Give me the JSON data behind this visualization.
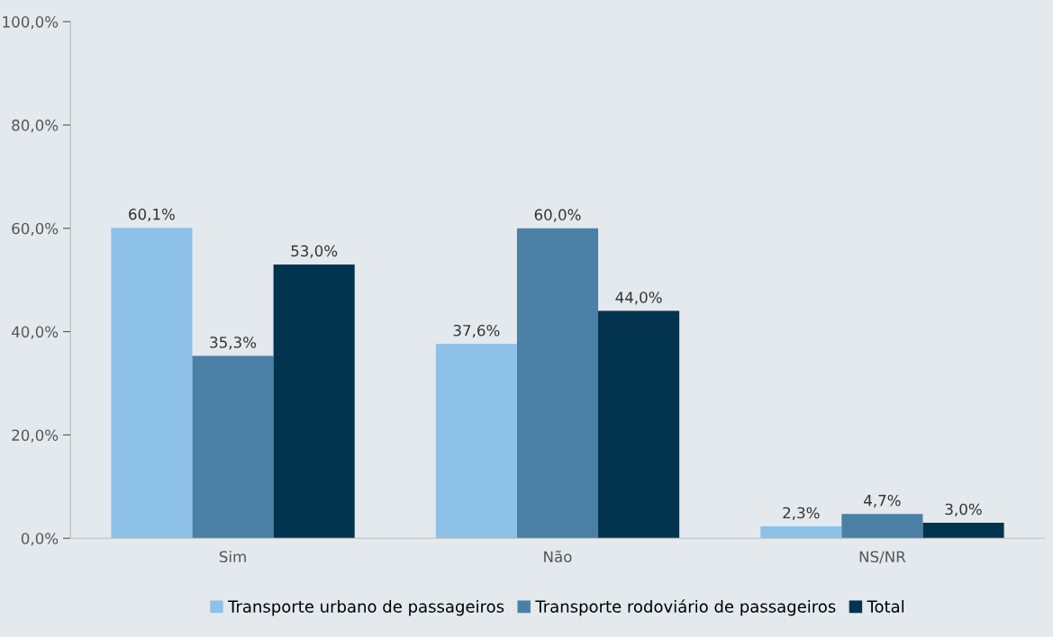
{
  "chart_data": {
    "type": "bar",
    "categories": [
      "Sim",
      "Não",
      "NS/NR"
    ],
    "series": [
      {
        "name": "Transporte urbano de passageiros",
        "color": "#8ec1e8",
        "values": [
          60.1,
          37.6,
          2.3
        ],
        "value_labels": [
          "60,1%",
          "37,6%",
          "2,3%"
        ]
      },
      {
        "name": "Transporte rodoviário de passageiros",
        "color": "#4a80a5",
        "values": [
          35.3,
          60.0,
          4.7
        ],
        "value_labels": [
          "35,3%",
          "60,0%",
          "4,7%"
        ]
      },
      {
        "name": "Total",
        "color": "#02344f",
        "values": [
          53.0,
          44.0,
          3.0
        ],
        "value_labels": [
          "53,0%",
          "44,0%",
          "3,0%"
        ]
      }
    ],
    "ylim": [
      0,
      100
    ],
    "yticks": [
      {
        "value": 0,
        "label": "0,0%"
      },
      {
        "value": 20,
        "label": "20,0%"
      },
      {
        "value": 40,
        "label": "40,0%"
      },
      {
        "value": 60,
        "label": "60,0%"
      },
      {
        "value": 80,
        "label": "80,0%"
      },
      {
        "value": 100,
        "label": "100,0%"
      }
    ],
    "grid": false,
    "legend": "bottom"
  }
}
